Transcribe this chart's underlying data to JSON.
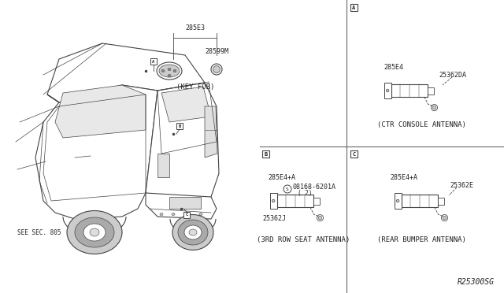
{
  "bg_color": "#ffffff",
  "line_color": "#444444",
  "text_color": "#222222",
  "fig_width": 6.4,
  "fig_height": 3.72,
  "diagram_code": "R25300SG",
  "divider_color": "#666666",
  "sections": {
    "A_label": "A",
    "A_part1": "285E4",
    "A_part2": "25362DA",
    "A_caption": "(CTR CONSOLE ANTENNA)",
    "B_label": "B",
    "B_part1": "285E4+A",
    "B_part2": "08168-6201A",
    "B_part2_prefix": "S",
    "B_part2_suffix": "( 2)",
    "B_part3": "25362J",
    "B_caption": "(3RD ROW SEAT ANTENNA)",
    "C_label": "C",
    "C_part1": "285E4+A",
    "C_part2": "25362E",
    "C_caption": "(REAR BUMPER ANTENNA)",
    "main_part": "285E3",
    "main_sub": "28599M",
    "main_caption": "(KEY FOB)",
    "see_sec": "SEE SEC. 805"
  }
}
